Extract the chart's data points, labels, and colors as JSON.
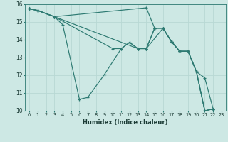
{
  "xlabel": "Humidex (Indice chaleur)",
  "xlim": [
    -0.5,
    23.5
  ],
  "ylim": [
    10,
    16
  ],
  "yticks": [
    10,
    11,
    12,
    13,
    14,
    15,
    16
  ],
  "xticks": [
    0,
    1,
    2,
    3,
    4,
    5,
    6,
    7,
    8,
    9,
    10,
    11,
    12,
    13,
    14,
    15,
    16,
    17,
    18,
    19,
    20,
    21,
    22,
    23
  ],
  "bg_color": "#cde8e4",
  "line_color": "#2d7a72",
  "grid_color": "#b8d8d4",
  "lines": [
    {
      "x": [
        0,
        1,
        3,
        4,
        6,
        7,
        9,
        11,
        12,
        13,
        14,
        16,
        17,
        18,
        19,
        20,
        21,
        22
      ],
      "y": [
        15.75,
        15.65,
        15.3,
        14.85,
        10.65,
        10.75,
        12.05,
        13.5,
        13.85,
        13.5,
        13.5,
        14.65,
        13.9,
        13.35,
        13.35,
        12.2,
        11.85,
        10.1
      ]
    },
    {
      "x": [
        0,
        1,
        3,
        14,
        15,
        16,
        17,
        18,
        19,
        20,
        21,
        22
      ],
      "y": [
        15.75,
        15.65,
        15.3,
        15.8,
        14.65,
        14.65,
        13.9,
        13.35,
        13.35,
        12.2,
        10.0,
        10.1
      ]
    },
    {
      "x": [
        0,
        1,
        3,
        13,
        14,
        15,
        16,
        17,
        18,
        19,
        20,
        21,
        22
      ],
      "y": [
        15.75,
        15.65,
        15.3,
        13.5,
        13.5,
        14.65,
        14.65,
        13.9,
        13.35,
        13.35,
        12.2,
        10.0,
        10.1
      ]
    },
    {
      "x": [
        0,
        1,
        3,
        10,
        11,
        12,
        13,
        14,
        15,
        16,
        17,
        18,
        19,
        20,
        21,
        22
      ],
      "y": [
        15.75,
        15.65,
        15.3,
        13.5,
        13.5,
        13.85,
        13.5,
        13.5,
        14.65,
        14.65,
        13.9,
        13.35,
        13.35,
        12.2,
        10.0,
        10.1
      ]
    }
  ]
}
